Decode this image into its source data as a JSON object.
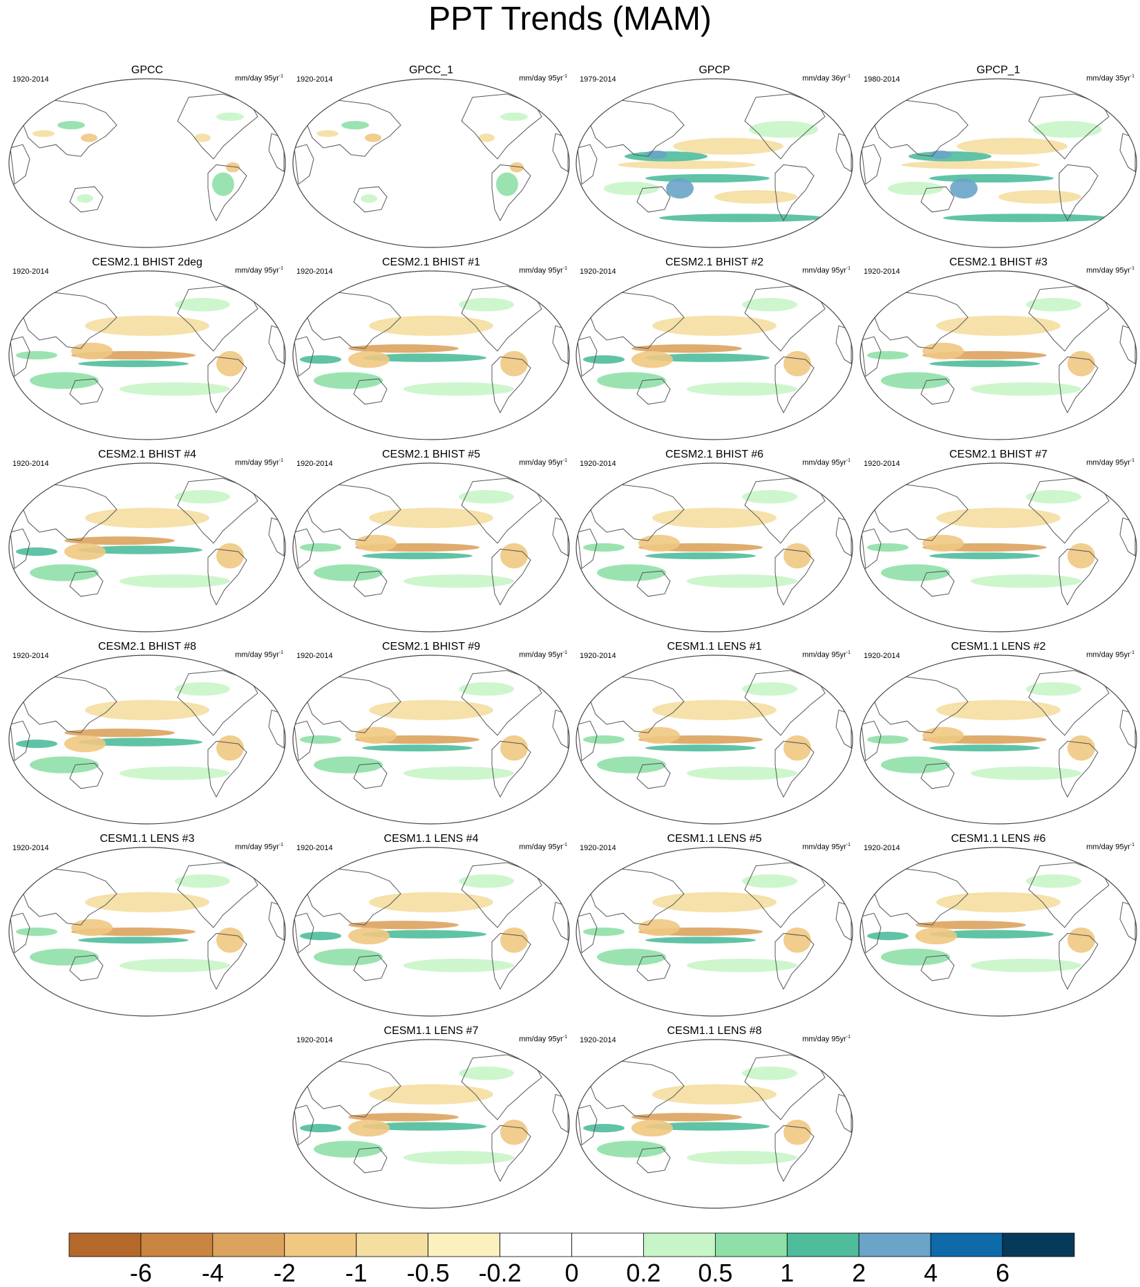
{
  "title": "PPT Trends (MAM)",
  "panels": [
    {
      "title": "GPCC",
      "period": "1920-2014",
      "units": "mm/day 95yr",
      "units_exp": "-1",
      "pattern": "land"
    },
    {
      "title": "GPCC_1",
      "period": "1920-2014",
      "units": "mm/day 95yr",
      "units_exp": "-1",
      "pattern": "land"
    },
    {
      "title": "GPCP",
      "period": "1979-2014",
      "units": "mm/day 36yr",
      "units_exp": "-1",
      "pattern": "obs"
    },
    {
      "title": "GPCP_1",
      "period": "1980-2014",
      "units": "mm/day 35yr",
      "units_exp": "-1",
      "pattern": "obs"
    },
    {
      "title": "CESM2.1 BHIST 2deg",
      "period": "1920-2014",
      "units": "mm/day 95yr",
      "units_exp": "-1",
      "pattern": "model_dry"
    },
    {
      "title": "CESM2.1 BHIST #1",
      "period": "1920-2014",
      "units": "mm/day 95yr",
      "units_exp": "-1",
      "pattern": "model_wet"
    },
    {
      "title": "CESM2.1 BHIST #2",
      "period": "1920-2014",
      "units": "mm/day 95yr",
      "units_exp": "-1",
      "pattern": "model_wet"
    },
    {
      "title": "CESM2.1 BHIST #3",
      "period": "1920-2014",
      "units": "mm/day 95yr",
      "units_exp": "-1",
      "pattern": "model_dry"
    },
    {
      "title": "CESM2.1 BHIST #4",
      "period": "1920-2014",
      "units": "mm/day 95yr",
      "units_exp": "-1",
      "pattern": "model_wet"
    },
    {
      "title": "CESM2.1 BHIST #5",
      "period": "1920-2014",
      "units": "mm/day 95yr",
      "units_exp": "-1",
      "pattern": "model_dry"
    },
    {
      "title": "CESM2.1 BHIST #6",
      "period": "1920-2014",
      "units": "mm/day 95yr",
      "units_exp": "-1",
      "pattern": "model_dry"
    },
    {
      "title": "CESM2.1 BHIST #7",
      "period": "1920-2014",
      "units": "mm/day 95yr",
      "units_exp": "-1",
      "pattern": "model_dry"
    },
    {
      "title": "CESM2.1 BHIST #8",
      "period": "1920-2014",
      "units": "mm/day 95yr",
      "units_exp": "-1",
      "pattern": "model_wet"
    },
    {
      "title": "CESM2.1 BHIST #9",
      "period": "1920-2014",
      "units": "mm/day 95yr",
      "units_exp": "-1",
      "pattern": "model_dry"
    },
    {
      "title": "CESM1.1 LENS #1",
      "period": "1920-2014",
      "units": "mm/day 95yr",
      "units_exp": "-1",
      "pattern": "model_dry"
    },
    {
      "title": "CESM1.1 LENS #2",
      "period": "1920-2014",
      "units": "mm/day 95yr",
      "units_exp": "-1",
      "pattern": "model_dry"
    },
    {
      "title": "CESM1.1 LENS #3",
      "period": "1920-2014",
      "units": "mm/day 95yr",
      "units_exp": "-1",
      "pattern": "model_dry"
    },
    {
      "title": "CESM1.1 LENS #4",
      "period": "1920-2014",
      "units": "mm/day 95yr",
      "units_exp": "-1",
      "pattern": "model_wet"
    },
    {
      "title": "CESM1.1 LENS #5",
      "period": "1920-2014",
      "units": "mm/day 95yr",
      "units_exp": "-1",
      "pattern": "model_dry"
    },
    {
      "title": "CESM1.1 LENS #6",
      "period": "1920-2014",
      "units": "mm/day 95yr",
      "units_exp": "-1",
      "pattern": "model_wet"
    },
    {
      "title": "CESM1.1 LENS #7",
      "period": "1920-2014",
      "units": "mm/day 95yr",
      "units_exp": "-1",
      "pattern": "model_wet"
    },
    {
      "title": "CESM1.1 LENS #8",
      "period": "1920-2014",
      "units": "mm/day 95yr",
      "units_exp": "-1",
      "pattern": "model_wet"
    }
  ],
  "colorbar": {
    "labels": [
      "-6",
      "-4",
      "-2",
      "-1",
      "-0.5",
      "-0.2",
      "0",
      "0.2",
      "0.5",
      "1",
      "2",
      "4",
      "6"
    ],
    "colors": [
      "#b4692a",
      "#c98442",
      "#dba35e",
      "#f0c882",
      "#f4dea0",
      "#fbf1bf",
      "#ffffff",
      "#ffffff",
      "#c8f5c8",
      "#8fe0a8",
      "#4fbc9c",
      "#6aa4c8",
      "#0e6aa8",
      "#063a5a"
    ]
  }
}
